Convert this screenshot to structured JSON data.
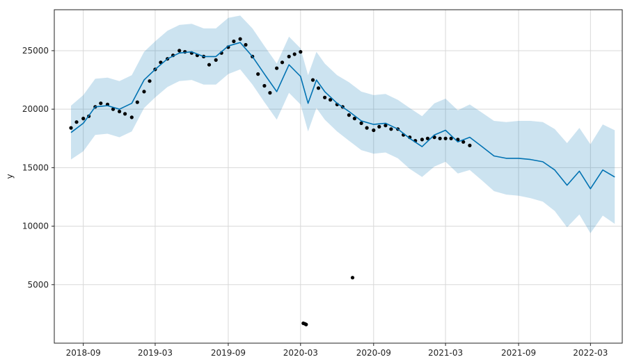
{
  "chart_data": {
    "type": "line",
    "title": "",
    "xlabel": "",
    "ylabel": "y",
    "xlim": [
      "2018-06-20",
      "2022-05-20"
    ],
    "ylim": [
      0,
      28500
    ],
    "grid": true,
    "x_ticks": [
      "2018-09",
      "2019-03",
      "2019-09",
      "2020-03",
      "2020-09",
      "2021-03",
      "2021-09",
      "2022-03"
    ],
    "y_ticks": [
      5000,
      10000,
      15000,
      20000,
      25000
    ],
    "colors": {
      "forecast": "#0072B2",
      "interval": "#0072B2",
      "observed": "#000000",
      "grid": "#d8d8d8"
    },
    "series": [
      {
        "name": "yhat",
        "kind": "forecast-line",
        "x": [
          "2018-08-01",
          "2018-09-01",
          "2018-10-01",
          "2018-11-01",
          "2018-12-01",
          "2019-01-01",
          "2019-02-01",
          "2019-03-01",
          "2019-04-01",
          "2019-05-01",
          "2019-06-01",
          "2019-07-01",
          "2019-08-01",
          "2019-09-01",
          "2019-10-01",
          "2019-11-01",
          "2019-12-01",
          "2020-01-01",
          "2020-02-01",
          "2020-03-01",
          "2020-03-20",
          "2020-04-10",
          "2020-05-01",
          "2020-06-01",
          "2020-07-01",
          "2020-08-01",
          "2020-09-01",
          "2020-10-01",
          "2020-11-01",
          "2020-12-01",
          "2021-01-01",
          "2021-02-01",
          "2021-03-01",
          "2021-04-01",
          "2021-05-01",
          "2021-06-01",
          "2021-07-01",
          "2021-08-01",
          "2021-09-01",
          "2021-10-01",
          "2021-11-01",
          "2021-12-01",
          "2022-01-01",
          "2022-02-01",
          "2022-03-01",
          "2022-04-01",
          "2022-05-01"
        ],
        "y": [
          18000,
          18800,
          20200,
          20300,
          20000,
          20500,
          22500,
          23400,
          24300,
          24800,
          24900,
          24500,
          24500,
          25400,
          25700,
          24500,
          23000,
          21500,
          23800,
          22800,
          20500,
          22500,
          21500,
          20500,
          19800,
          19000,
          18700,
          18800,
          18300,
          17500,
          16800,
          17800,
          18200,
          17200,
          17600,
          16800,
          16000,
          15800,
          15800,
          15700,
          15500,
          14800,
          13500,
          14700,
          13200,
          14800,
          14200
        ]
      },
      {
        "name": "yhat_upper",
        "kind": "interval-upper",
        "x": [
          "2018-08-01",
          "2018-09-01",
          "2018-10-01",
          "2018-11-01",
          "2018-12-01",
          "2019-01-01",
          "2019-02-01",
          "2019-03-01",
          "2019-04-01",
          "2019-05-01",
          "2019-06-01",
          "2019-07-01",
          "2019-08-01",
          "2019-09-01",
          "2019-10-01",
          "2019-11-01",
          "2019-12-01",
          "2020-01-01",
          "2020-02-01",
          "2020-03-01",
          "2020-03-20",
          "2020-04-10",
          "2020-05-01",
          "2020-06-01",
          "2020-07-01",
          "2020-08-01",
          "2020-09-01",
          "2020-10-01",
          "2020-11-01",
          "2020-12-01",
          "2021-01-01",
          "2021-02-01",
          "2021-03-01",
          "2021-04-01",
          "2021-05-01",
          "2021-06-01",
          "2021-07-01",
          "2021-08-01",
          "2021-09-01",
          "2021-10-01",
          "2021-11-01",
          "2021-12-01",
          "2022-01-01",
          "2022-02-01",
          "2022-03-01",
          "2022-04-01",
          "2022-05-01"
        ],
        "y": [
          20300,
          21200,
          22600,
          22700,
          22400,
          22900,
          24900,
          25800,
          26700,
          27200,
          27300,
          26900,
          26900,
          27800,
          28000,
          26900,
          25400,
          23900,
          26200,
          25200,
          22900,
          24900,
          23900,
          22900,
          22300,
          21500,
          21200,
          21300,
          20800,
          20100,
          19400,
          20500,
          20900,
          19900,
          20400,
          19700,
          19000,
          18900,
          19000,
          19000,
          18900,
          18300,
          17100,
          18400,
          17000,
          18700,
          18200
        ]
      },
      {
        "name": "yhat_lower",
        "kind": "interval-lower",
        "x": [
          "2018-08-01",
          "2018-09-01",
          "2018-10-01",
          "2018-11-01",
          "2018-12-01",
          "2019-01-01",
          "2019-02-01",
          "2019-03-01",
          "2019-04-01",
          "2019-05-01",
          "2019-06-01",
          "2019-07-01",
          "2019-08-01",
          "2019-09-01",
          "2019-10-01",
          "2019-11-01",
          "2019-12-01",
          "2020-01-01",
          "2020-02-01",
          "2020-03-01",
          "2020-03-20",
          "2020-04-10",
          "2020-05-01",
          "2020-06-01",
          "2020-07-01",
          "2020-08-01",
          "2020-09-01",
          "2020-10-01",
          "2020-11-01",
          "2020-12-01",
          "2021-01-01",
          "2021-02-01",
          "2021-03-01",
          "2021-04-01",
          "2021-05-01",
          "2021-06-01",
          "2021-07-01",
          "2021-08-01",
          "2021-09-01",
          "2021-10-01",
          "2021-11-01",
          "2021-12-01",
          "2022-01-01",
          "2022-02-01",
          "2022-03-01",
          "2022-04-01",
          "2022-05-01"
        ],
        "y": [
          15700,
          16400,
          17800,
          17900,
          17600,
          18100,
          20100,
          21000,
          21900,
          22400,
          22500,
          22100,
          22100,
          23000,
          23400,
          22100,
          20600,
          19100,
          21400,
          20400,
          18100,
          20100,
          19100,
          18100,
          17300,
          16500,
          16200,
          16300,
          15800,
          14900,
          14200,
          15100,
          15500,
          14500,
          14800,
          13900,
          13000,
          12700,
          12600,
          12400,
          12100,
          11300,
          9900,
          11000,
          9400,
          10900,
          10200
        ]
      },
      {
        "name": "y",
        "kind": "observed-points",
        "x": [
          "2018-08-01",
          "2018-08-15",
          "2018-09-01",
          "2018-09-15",
          "2018-10-01",
          "2018-10-15",
          "2018-11-01",
          "2018-11-15",
          "2018-12-01",
          "2018-12-15",
          "2019-01-01",
          "2019-01-15",
          "2019-02-01",
          "2019-02-15",
          "2019-03-01",
          "2019-03-15",
          "2019-04-01",
          "2019-04-15",
          "2019-05-01",
          "2019-05-15",
          "2019-06-01",
          "2019-06-15",
          "2019-07-01",
          "2019-07-15",
          "2019-08-01",
          "2019-08-15",
          "2019-09-01",
          "2019-09-15",
          "2019-10-01",
          "2019-10-15",
          "2019-11-01",
          "2019-11-15",
          "2019-12-01",
          "2019-12-15",
          "2020-01-01",
          "2020-01-15",
          "2020-02-01",
          "2020-02-15",
          "2020-03-01",
          "2020-03-08",
          "2020-03-12",
          "2020-03-15",
          "2020-04-01",
          "2020-04-15",
          "2020-05-01",
          "2020-05-15",
          "2020-06-01",
          "2020-06-15",
          "2020-07-01",
          "2020-07-10",
          "2020-07-15",
          "2020-08-01",
          "2020-08-15",
          "2020-09-01",
          "2020-09-15",
          "2020-10-01",
          "2020-10-15",
          "2020-11-01",
          "2020-11-15",
          "2020-12-01",
          "2020-12-15",
          "2021-01-01",
          "2021-01-15",
          "2021-02-01",
          "2021-02-15",
          "2021-03-01",
          "2021-03-15",
          "2021-04-01",
          "2021-04-15",
          "2021-05-01"
        ],
        "y": [
          18400,
          18900,
          19200,
          19400,
          20200,
          20500,
          20400,
          20000,
          19800,
          19600,
          19300,
          20600,
          21500,
          22400,
          23400,
          24000,
          24300,
          24600,
          25000,
          24900,
          24800,
          24600,
          24500,
          23800,
          24200,
          24800,
          25300,
          25800,
          26000,
          25500,
          24500,
          23000,
          22000,
          21400,
          23500,
          24000,
          24500,
          24700,
          24900,
          1700,
          1650,
          1600,
          22500,
          21800,
          21000,
          20800,
          20400,
          20200,
          19500,
          5600,
          19200,
          18800,
          18400,
          18200,
          18500,
          18600,
          18300,
          18300,
          17800,
          17600,
          17300,
          17400,
          17500,
          17600,
          17500,
          17500,
          17500,
          17400,
          17200,
          16900
        ]
      }
    ]
  }
}
